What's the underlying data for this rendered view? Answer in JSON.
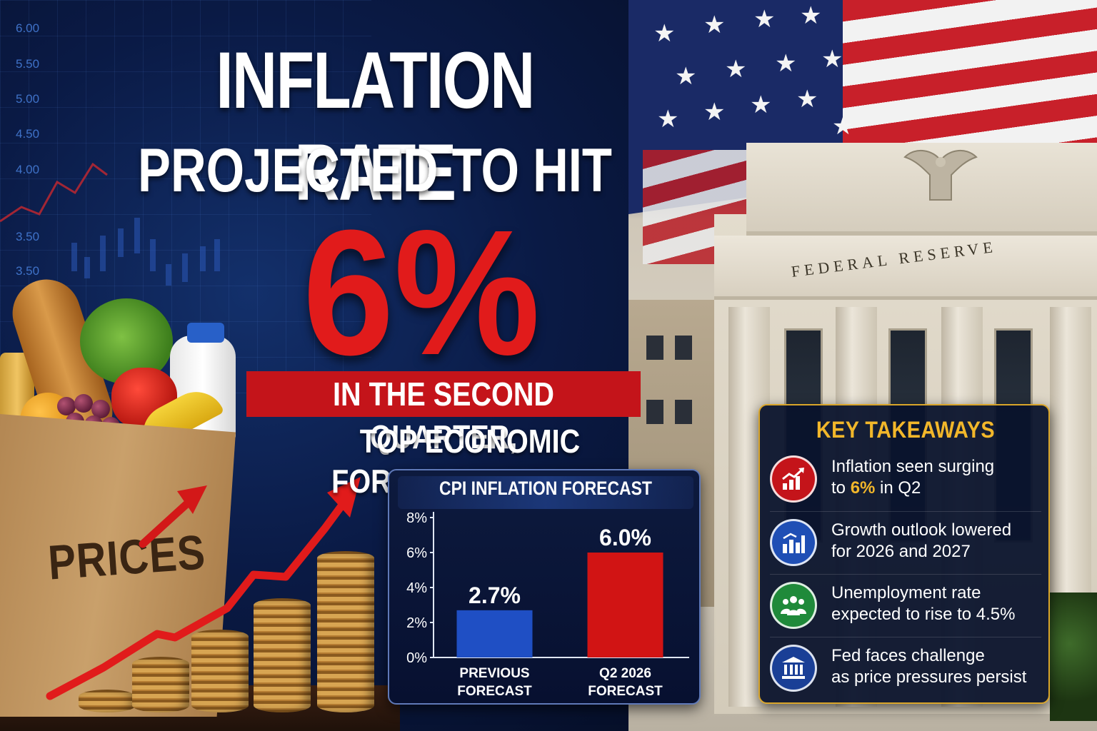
{
  "headline": {
    "line1": "INFLATION RATE",
    "line2": "PROJECTED TO HIT",
    "big_value": "6%",
    "band": "IN THE SECOND QUARTER,",
    "subline": "TOP ECONOMIC FORECASTERS SAY"
  },
  "background": {
    "scale_ticks": [
      "6.00",
      "5.50",
      "5.00",
      "4.50",
      "4.00",
      "3.50",
      "3.50",
      "3.50"
    ],
    "bag_label": "PRICES",
    "building_label": "FEDERAL RESERVE"
  },
  "chart_data": {
    "type": "bar",
    "title": "CPI INFLATION FORECAST",
    "categories": [
      "PREVIOUS FORECAST",
      "Q2 2026 FORECAST"
    ],
    "category_lines": [
      [
        "PREVIOUS",
        "FORECAST"
      ],
      [
        "Q2 2026",
        "FORECAST"
      ]
    ],
    "values": [
      2.7,
      6.0
    ],
    "data_labels": [
      "2.7%",
      "6.0%"
    ],
    "bar_colors": [
      "#1f4fc4",
      "#d11414"
    ],
    "ylim": [
      0,
      8
    ],
    "yticks": [
      "0%",
      "2%",
      "4%",
      "6%",
      "8%"
    ],
    "grid": false
  },
  "takeaways": {
    "title": "KEY TAKEAWAYS",
    "items": [
      {
        "icon": "chart-up-icon",
        "color": "#c4141a",
        "line1": "Inflation seen surging",
        "line2_pre": "to ",
        "line2_hl": "6%",
        "line2_post": " in Q2"
      },
      {
        "icon": "bar-chart-icon",
        "color": "#1f4fb5",
        "line1": "Growth outlook lowered",
        "line2_pre": "for 2026 and 2027",
        "line2_hl": "",
        "line2_post": ""
      },
      {
        "icon": "people-icon",
        "color": "#1f8a3a",
        "line1": "Unemployment rate",
        "line2_pre": "expected to rise to 4.5%",
        "line2_hl": "",
        "line2_post": ""
      },
      {
        "icon": "bank-icon",
        "color": "#1a3f96",
        "line1": "Fed faces challenge",
        "line2_pre": "as price pressures persist",
        "line2_hl": "",
        "line2_post": ""
      }
    ]
  }
}
